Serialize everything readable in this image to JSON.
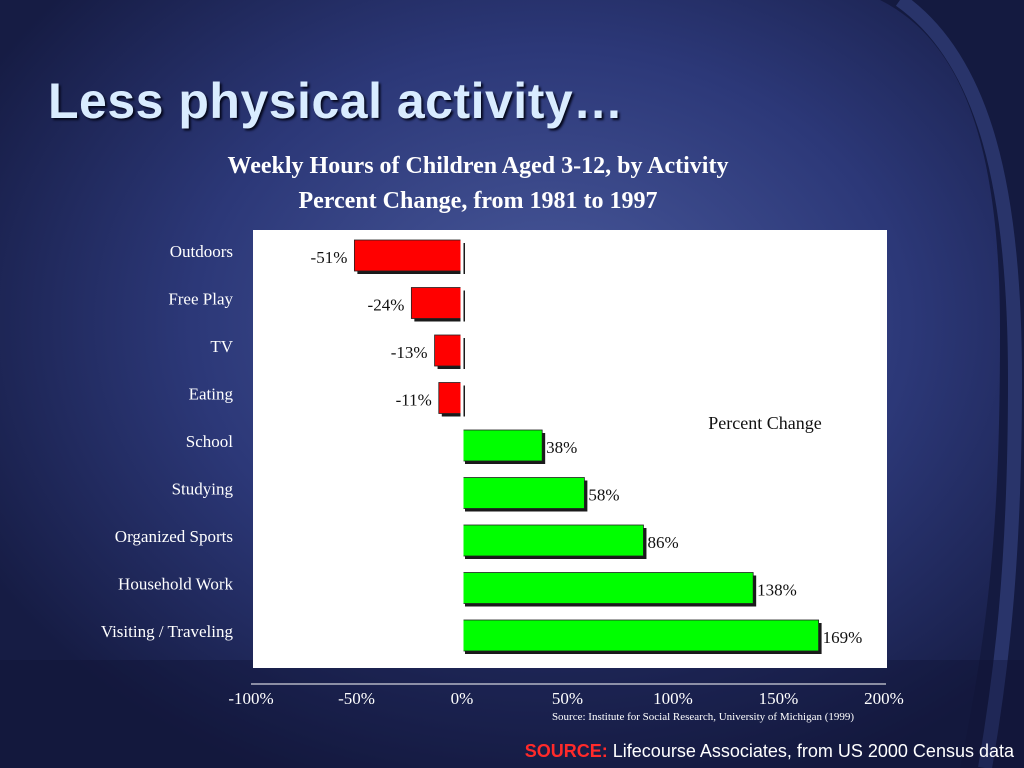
{
  "slide": {
    "title": "Less physical activity…"
  },
  "chart_data": {
    "type": "bar",
    "orientation": "horizontal",
    "title": "Weekly Hours of Children Aged 3-12, by Activity",
    "subtitle": "Percent Change, from 1981 to 1997",
    "categories": [
      "Outdoors",
      "Free Play",
      "TV",
      "Eating",
      "School",
      "Studying",
      "Organized Sports",
      "Household Work",
      "Visiting / Traveling"
    ],
    "values": [
      -51,
      -24,
      -13,
      -11,
      38,
      58,
      86,
      138,
      169
    ],
    "data_labels": [
      "-51%",
      "-24%",
      "-13%",
      "-11%",
      "38%",
      "58%",
      "86%",
      "138%",
      "169%"
    ],
    "xlim": [
      -100,
      200
    ],
    "x_ticks": [
      -100,
      -50,
      0,
      50,
      100,
      150,
      200
    ],
    "x_tick_labels": [
      "-100%",
      "-50%",
      "0%",
      "50%",
      "100%",
      "150%",
      "200%"
    ],
    "annotation": "Percent Change",
    "chart_source": "Source: Institute for Social Research, University of Michigan (1999)",
    "grid": false,
    "colors": {
      "negative": "#ff0000",
      "positive": "#00ff00",
      "plot_background": "#ffffff"
    }
  },
  "footer": {
    "source_label": "SOURCE:",
    "source_text": " Lifecourse Associates, from US 2000 Census data"
  }
}
